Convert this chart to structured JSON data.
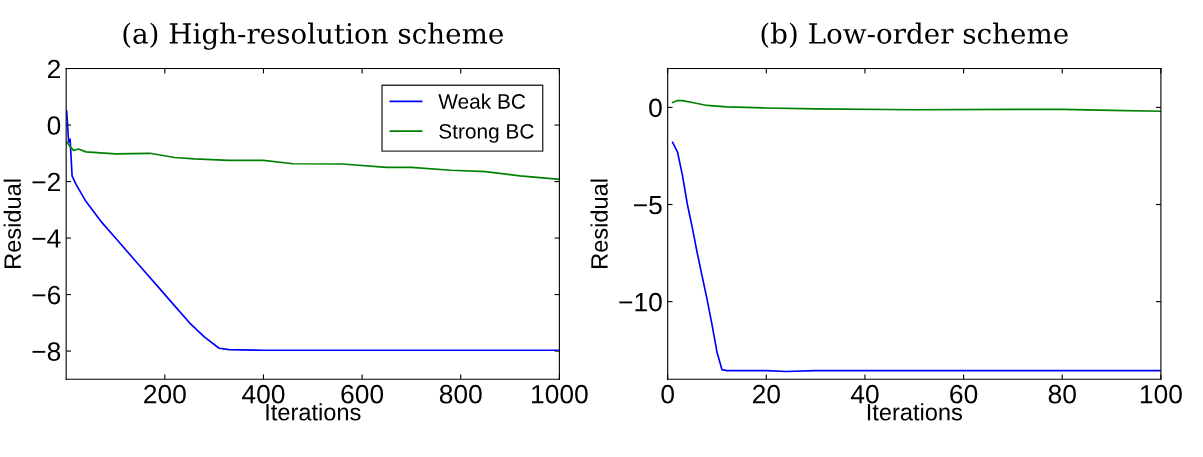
{
  "chart_data": [
    {
      "type": "line",
      "title": "(a) High-resolution scheme",
      "xlabel": "Iterations",
      "ylabel": "Residual",
      "xlim": [
        0,
        1000
      ],
      "xticks": [
        200,
        400,
        600,
        800,
        1000
      ],
      "ylim": [
        -9,
        2
      ],
      "yticks": [
        2,
        0,
        -2,
        -4,
        -6,
        -8
      ],
      "grid": false,
      "legend": "top right",
      "series": [
        {
          "name": "Weak BC",
          "color": "#0000ff",
          "x": [
            1,
            5,
            8,
            12,
            20,
            40,
            70,
            100,
            130,
            160,
            190,
            220,
            250,
            280,
            310,
            330,
            400,
            500,
            600,
            700,
            800,
            900,
            1000
          ],
          "values": [
            0.5,
            -0.6,
            -0.5,
            -1.8,
            -2.1,
            -2.7,
            -3.4,
            -4.0,
            -4.6,
            -5.2,
            -5.8,
            -6.4,
            -7.0,
            -7.5,
            -7.9,
            -7.95,
            -7.97,
            -7.97,
            -7.97,
            -7.97,
            -7.97,
            -7.97,
            -7.97
          ]
        },
        {
          "name": "Strong BC",
          "color": "#008000",
          "x": [
            1,
            10,
            15,
            25,
            40,
            100,
            170,
            220,
            260,
            330,
            400,
            460,
            560,
            650,
            700,
            780,
            850,
            920,
            1000
          ],
          "values": [
            -0.6,
            -0.8,
            -0.9,
            -0.85,
            -0.95,
            -1.02,
            -1.0,
            -1.15,
            -1.2,
            -1.25,
            -1.25,
            -1.37,
            -1.38,
            -1.5,
            -1.5,
            -1.6,
            -1.65,
            -1.8,
            -1.92
          ]
        }
      ]
    },
    {
      "type": "line",
      "title": "(b) Low-order scheme",
      "xlabel": "Iterations",
      "ylabel": "Residual",
      "xlim": [
        0,
        100
      ],
      "xticks": [
        0,
        20,
        40,
        60,
        80,
        100
      ],
      "ylim": [
        -14,
        2
      ],
      "yticks": [
        0,
        -5,
        -10
      ],
      "grid": false,
      "legend": false,
      "series": [
        {
          "color": "#0000ff",
          "x": [
            1,
            2,
            3,
            4,
            5,
            6,
            7,
            8,
            9,
            10,
            11,
            12,
            20,
            24,
            30,
            40,
            50,
            60,
            70,
            80,
            90,
            100
          ],
          "values": [
            -1.8,
            -2.3,
            -3.5,
            -5.0,
            -6.2,
            -7.5,
            -8.7,
            -9.9,
            -11.2,
            -12.6,
            -13.5,
            -13.55,
            -13.55,
            -13.6,
            -13.55,
            -13.55,
            -13.55,
            -13.55,
            -13.55,
            -13.55,
            -13.55,
            -13.55
          ]
        },
        {
          "color": "#008000",
          "x": [
            1,
            2,
            3,
            5,
            8,
            12,
            20,
            30,
            50,
            70,
            80,
            90,
            100
          ],
          "values": [
            0.25,
            0.35,
            0.35,
            0.25,
            0.1,
            0.03,
            -0.03,
            -0.08,
            -0.12,
            -0.1,
            -0.1,
            -0.15,
            -0.2
          ]
        }
      ]
    }
  ]
}
